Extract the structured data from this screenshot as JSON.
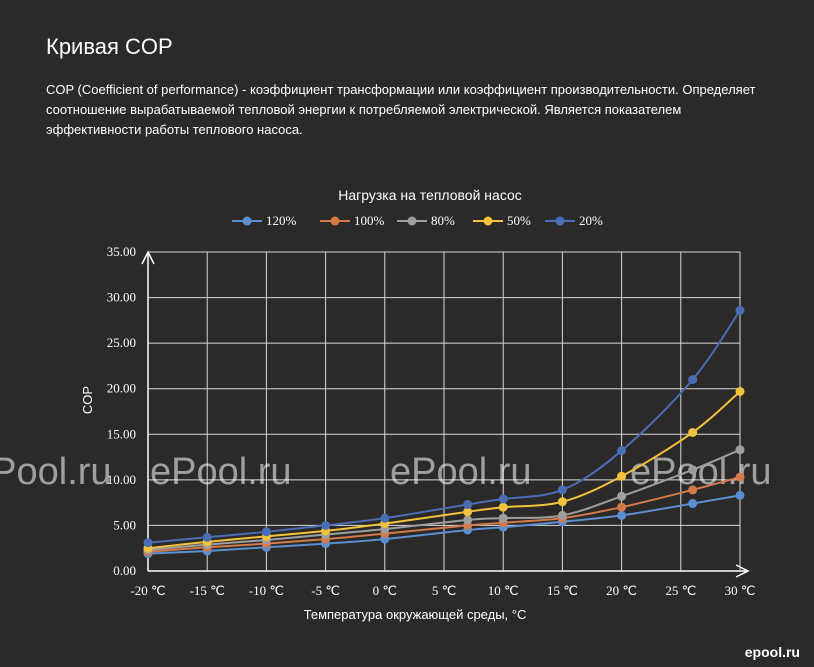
{
  "page": {
    "title": "Кривая COP",
    "description": "COP (Coefficient of performance) - коэффициент трансформации или коэффициент производительности. Определяет соотношение вырабатываемой тепловой энергии к потребляемой электрической. Является показателем эффективности работы теплового насоса."
  },
  "watermark": "ePool.ru",
  "corner_logo": "epool.ru",
  "chart_data": {
    "type": "line",
    "title": "Нагрузка на тепловой насос",
    "xlabel": "Температура окружающей среды, °C",
    "ylabel": "COP",
    "ylim": [
      0,
      35
    ],
    "y_ticks": [
      "0.00",
      "5.00",
      "10.00",
      "15.00",
      "20.00",
      "25.00",
      "30.00",
      "35.00"
    ],
    "x_ticks": [
      "-20 ℃",
      "-15 ℃",
      "-10 ℃",
      "-5 ℃",
      "0 ℃",
      "5 ℃",
      "10 ℃",
      "15 ℃",
      "20 ℃",
      "25 ℃",
      "30 ℃"
    ],
    "grid": true,
    "legend_position": "top",
    "series": [
      {
        "name": "120%",
        "color": "#5b8fd1",
        "x": [
          -20,
          -15,
          -10,
          -5,
          0,
          7,
          10,
          15,
          20,
          26,
          30
        ],
        "y": [
          1.9,
          2.2,
          2.6,
          3.0,
          3.5,
          4.5,
          4.8,
          5.4,
          6.1,
          7.4,
          8.3
        ]
      },
      {
        "name": "100%",
        "color": "#d3794a",
        "x": [
          -20,
          -15,
          -10,
          -5,
          0,
          7,
          10,
          15,
          20,
          26,
          30
        ],
        "y": [
          2.1,
          2.6,
          3.0,
          3.5,
          4.1,
          5.0,
          5.3,
          5.8,
          7.0,
          8.9,
          10.3
        ]
      },
      {
        "name": "80%",
        "color": "#9e9e9e",
        "x": [
          -20,
          -15,
          -10,
          -5,
          0,
          7,
          10,
          15,
          20,
          26,
          30
        ],
        "y": [
          2.3,
          2.9,
          3.4,
          4.0,
          4.6,
          5.6,
          5.8,
          6.1,
          8.2,
          11.1,
          13.3
        ]
      },
      {
        "name": "50%",
        "color": "#f2c23b",
        "x": [
          -20,
          -15,
          -10,
          -5,
          0,
          7,
          10,
          15,
          20,
          26,
          30
        ],
        "y": [
          2.5,
          3.2,
          3.8,
          4.4,
          5.2,
          6.5,
          7.0,
          7.6,
          10.4,
          15.2,
          19.7
        ]
      },
      {
        "name": "20%",
        "color": "#4a6db5",
        "x": [
          -20,
          -15,
          -10,
          -5,
          0,
          7,
          10,
          15,
          20,
          26,
          30
        ],
        "y": [
          3.1,
          3.7,
          4.3,
          5.0,
          5.8,
          7.3,
          7.9,
          8.9,
          13.2,
          21.0,
          28.6
        ]
      }
    ]
  }
}
